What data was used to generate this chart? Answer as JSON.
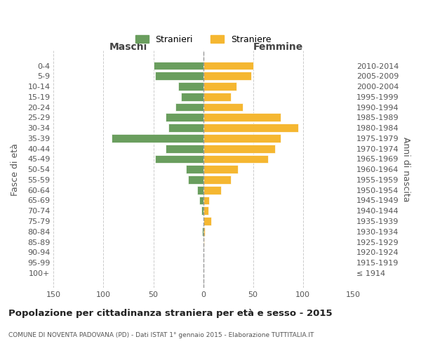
{
  "age_groups": [
    "100+",
    "95-99",
    "90-94",
    "85-89",
    "80-84",
    "75-79",
    "70-74",
    "65-69",
    "60-64",
    "55-59",
    "50-54",
    "45-49",
    "40-44",
    "35-39",
    "30-34",
    "25-29",
    "20-24",
    "15-19",
    "10-14",
    "5-9",
    "0-4"
  ],
  "birth_years": [
    "≤ 1914",
    "1915-1919",
    "1920-1924",
    "1925-1929",
    "1930-1934",
    "1935-1939",
    "1940-1944",
    "1945-1949",
    "1950-1954",
    "1955-1959",
    "1960-1964",
    "1965-1969",
    "1970-1974",
    "1975-1979",
    "1980-1984",
    "1985-1989",
    "1990-1994",
    "1995-1999",
    "2000-2004",
    "2005-2009",
    "2010-2014"
  ],
  "maschi": [
    0,
    0,
    0,
    0,
    1,
    0,
    2,
    4,
    6,
    15,
    17,
    48,
    38,
    92,
    35,
    38,
    28,
    22,
    25,
    48,
    50
  ],
  "femmine": [
    0,
    0,
    0,
    1,
    2,
    8,
    5,
    6,
    18,
    28,
    35,
    65,
    72,
    78,
    95,
    78,
    40,
    28,
    33,
    48,
    50
  ],
  "maschi_color": "#6a9e5e",
  "femmine_color": "#f5b731",
  "title": "Popolazione per cittadinanza straniera per età e sesso - 2015",
  "subtitle": "COMUNE DI NOVENTA PADOVANA (PD) - Dati ISTAT 1° gennaio 2015 - Elaborazione TUTTITALIA.IT",
  "ylabel_left": "Fasce di età",
  "ylabel_right": "Anni di nascita",
  "xlabel_maschi": "Maschi",
  "xlabel_femmine": "Femmine",
  "legend_maschi": "Stranieri",
  "legend_femmine": "Straniere",
  "xlim": 150,
  "background_color": "#ffffff",
  "grid_color": "#cccccc"
}
